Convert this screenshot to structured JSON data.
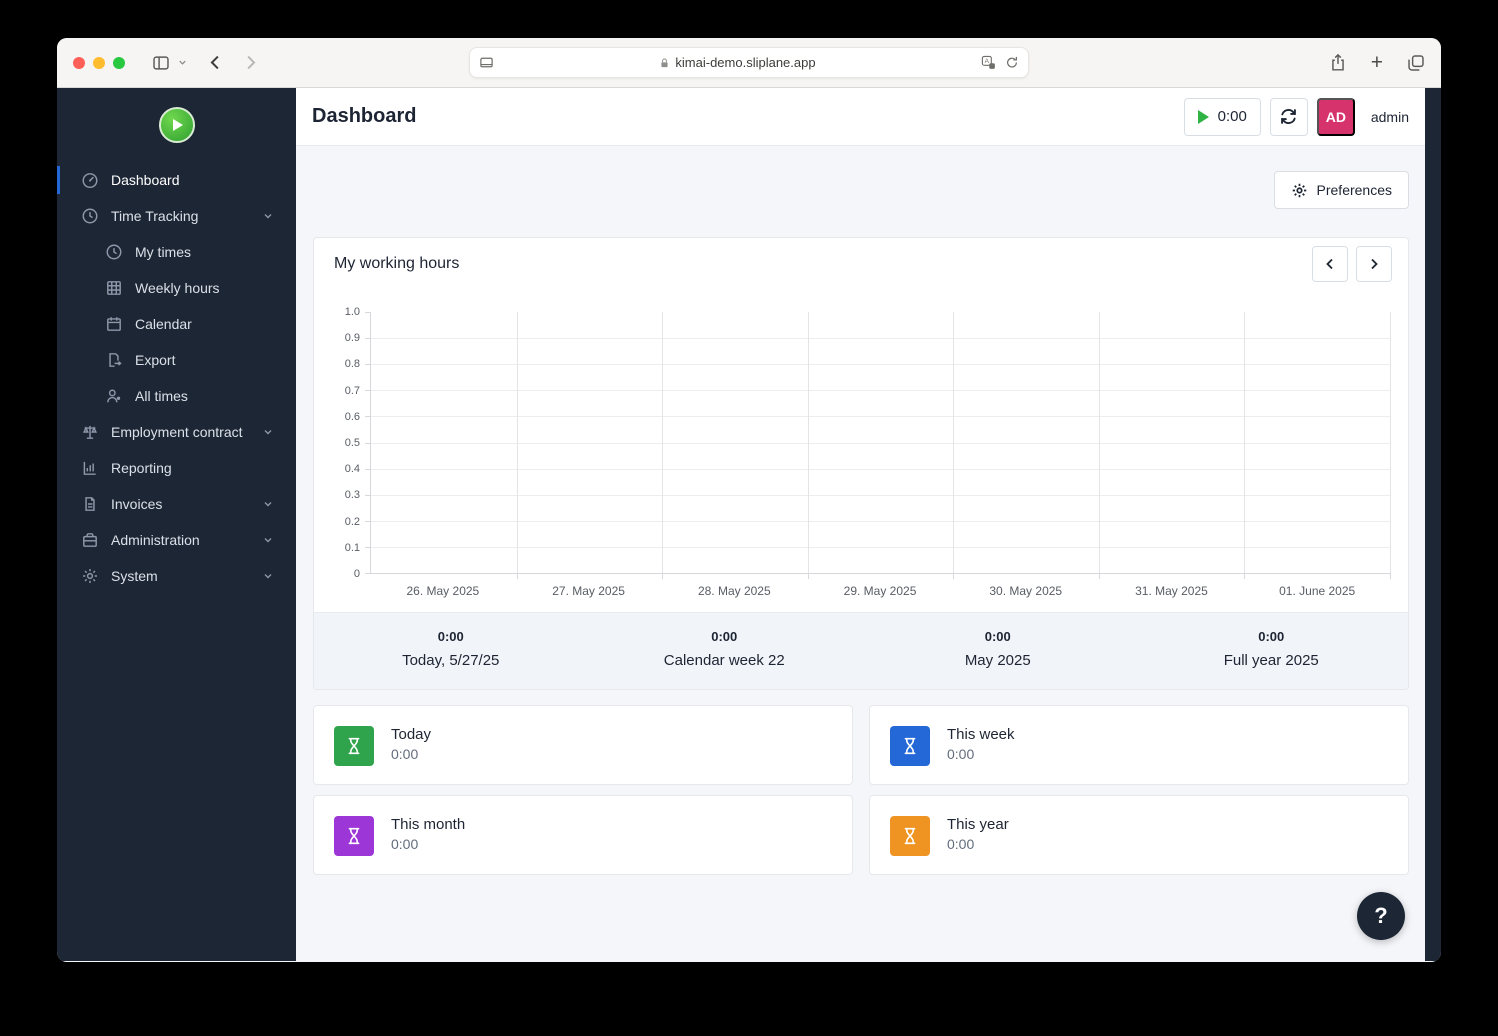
{
  "browser": {
    "url": "kimai-demo.sliplane.app",
    "traffic_lights": [
      "#ff5f57",
      "#febc2e",
      "#28c840"
    ]
  },
  "sidebar": {
    "items": [
      {
        "label": "Dashboard",
        "icon": "gauge-icon",
        "active": true,
        "indent": false,
        "chevron": false
      },
      {
        "label": "Time Tracking",
        "icon": "clock-icon",
        "active": false,
        "indent": false,
        "chevron": true
      },
      {
        "label": "My times",
        "icon": "clock-icon",
        "active": false,
        "indent": true,
        "chevron": false
      },
      {
        "label": "Weekly hours",
        "icon": "grid-icon",
        "active": false,
        "indent": true,
        "chevron": false
      },
      {
        "label": "Calendar",
        "icon": "calendar-icon",
        "active": false,
        "indent": true,
        "chevron": false
      },
      {
        "label": "Export",
        "icon": "file-export-icon",
        "active": false,
        "indent": true,
        "chevron": false
      },
      {
        "label": "All times",
        "icon": "users-icon",
        "active": false,
        "indent": true,
        "chevron": false
      },
      {
        "label": "Employment contract",
        "icon": "scale-icon",
        "active": false,
        "indent": false,
        "chevron": true
      },
      {
        "label": "Reporting",
        "icon": "report-icon",
        "active": false,
        "indent": false,
        "chevron": false
      },
      {
        "label": "Invoices",
        "icon": "invoice-icon",
        "active": false,
        "indent": false,
        "chevron": true
      },
      {
        "label": "Administration",
        "icon": "briefcase-icon",
        "active": false,
        "indent": false,
        "chevron": true
      },
      {
        "label": "System",
        "icon": "gear-icon",
        "active": false,
        "indent": false,
        "chevron": true
      }
    ]
  },
  "header": {
    "title": "Dashboard",
    "timer": "0:00",
    "user_initials": "AD",
    "username": "admin"
  },
  "preferences": {
    "label": "Preferences"
  },
  "working_hours": {
    "title": "My working hours"
  },
  "chart_data": {
    "type": "bar",
    "title": "My working hours",
    "categories": [
      "26. May 2025",
      "27. May 2025",
      "28. May 2025",
      "29. May 2025",
      "30. May 2025",
      "31. May 2025",
      "01. June 2025"
    ],
    "values": [
      0,
      0,
      0,
      0,
      0,
      0,
      0
    ],
    "xlabel": "",
    "ylabel": "",
    "ylim": [
      0,
      1.0
    ],
    "yticks": [
      "0",
      "0.1",
      "0.2",
      "0.3",
      "0.4",
      "0.5",
      "0.6",
      "0.7",
      "0.8",
      "0.9",
      "1.0"
    ],
    "grid": true,
    "legend": false
  },
  "summary": [
    {
      "value": "0:00",
      "label": "Today, 5/27/25"
    },
    {
      "value": "0:00",
      "label": "Calendar week 22"
    },
    {
      "value": "0:00",
      "label": "May 2025"
    },
    {
      "value": "0:00",
      "label": "Full year 2025"
    }
  ],
  "stat_cards": [
    {
      "title": "Today",
      "value": "0:00",
      "color": "#2fa44c"
    },
    {
      "title": "This week",
      "value": "0:00",
      "color": "#2368d6"
    },
    {
      "title": "This month",
      "value": "0:00",
      "color": "#9c36d6"
    },
    {
      "title": "This year",
      "value": "0:00",
      "color": "#ef9423"
    }
  ],
  "help": {
    "label": "?"
  }
}
